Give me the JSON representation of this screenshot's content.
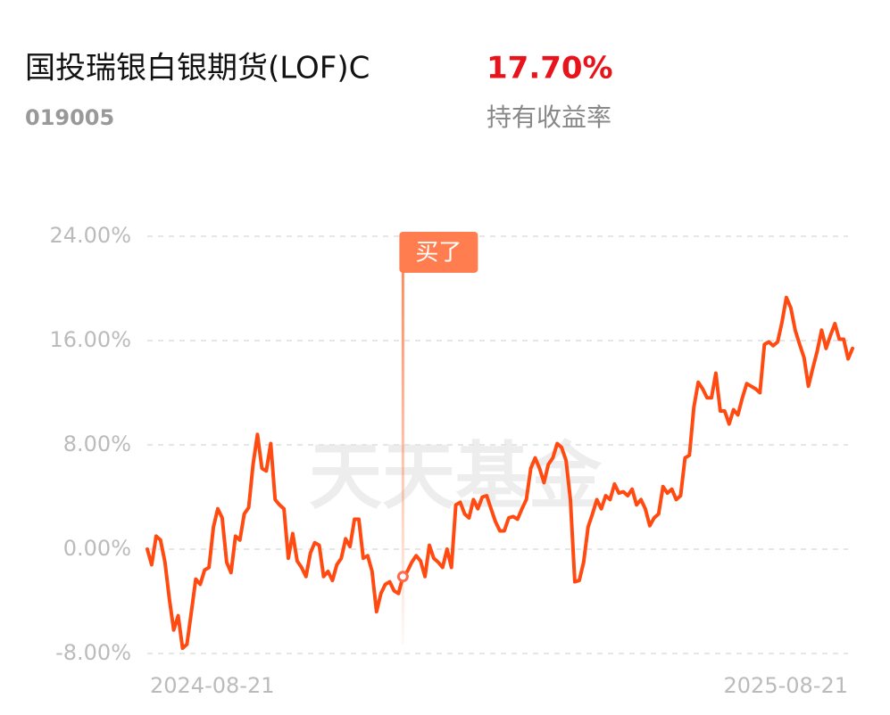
{
  "header": {
    "title": "国投瑞银白银期货(LOF)C",
    "return_value": "17.70%",
    "code": "019005",
    "return_label": "持有收益率"
  },
  "chart_data": {
    "type": "line",
    "color": "#ff4b12",
    "watermark": "天天基金",
    "ylim": [
      -8,
      24
    ],
    "yticks": [
      {
        "value": 24,
        "label": "24.00%"
      },
      {
        "value": 16,
        "label": "16.00%"
      },
      {
        "value": 8,
        "label": "8.00%"
      },
      {
        "value": 0,
        "label": "0.00%"
      },
      {
        "value": -8,
        "label": "-8.00%"
      }
    ],
    "grid": true,
    "x_labels": [
      "2024-08-21",
      "2025-08-21"
    ],
    "annotation": {
      "label": "买了",
      "index": 58
    },
    "values": [
      0,
      -1.2,
      1.0,
      0.7,
      -1.0,
      -3.8,
      -6.2,
      -5.1,
      -7.6,
      -7.3,
      -4.8,
      -2.3,
      -2.7,
      -1.6,
      -1.4,
      1.7,
      3.1,
      2.4,
      -1.0,
      -1.8,
      1.0,
      0.7,
      2.7,
      3.2,
      6.5,
      8.8,
      6.2,
      6.0,
      8.1,
      3.8,
      3.4,
      3.1,
      -0.7,
      1.2,
      -0.9,
      -1.4,
      -2.1,
      -0.3,
      0.5,
      0.3,
      -2.1,
      -1.7,
      -2.4,
      -1.2,
      -0.7,
      0.8,
      0.2,
      2.3,
      2.3,
      -0.7,
      -0.5,
      -1.7,
      -4.8,
      -3.4,
      -2.7,
      -2.5,
      -3.2,
      -3.4,
      -2.1,
      -1.7,
      -1.0,
      -0.5,
      -0.9,
      -2.1,
      0.3,
      -0.7,
      -1.0,
      -1.4,
      0,
      -1.4,
      3.4,
      3.6,
      2.7,
      2.4,
      3.8,
      3.1,
      4.0,
      4.1,
      3.1,
      2.1,
      1.4,
      1.4,
      2.4,
      2.5,
      2.3,
      3.1,
      3.8,
      6.2,
      7.0,
      6.2,
      5.1,
      6.5,
      7.0,
      8.1,
      7.8,
      6.8,
      3.8,
      -2.5,
      -2.4,
      -1.0,
      1.7,
      2.7,
      3.8,
      3.1,
      4.1,
      3.8,
      5.0,
      4.3,
      4.4,
      4.1,
      4.6,
      3.4,
      3.8,
      3.1,
      1.8,
      2.4,
      2.7,
      4.8,
      4.3,
      4.6,
      3.8,
      4.1,
      7.0,
      7.2,
      10.9,
      12.8,
      12.3,
      11.6,
      11.6,
      13.5,
      10.6,
      10.6,
      9.6,
      10.7,
      10.3,
      11.6,
      12.7,
      12.5,
      12.3,
      12.0,
      15.7,
      15.9,
      15.6,
      15.9,
      17.4,
      19.3,
      18.5,
      16.8,
      15.7,
      14.7,
      12.5,
      13.9,
      15.2,
      16.8,
      15.4,
      16.4,
      17.3,
      16.1,
      16.1,
      14.6,
      15.4
    ]
  }
}
